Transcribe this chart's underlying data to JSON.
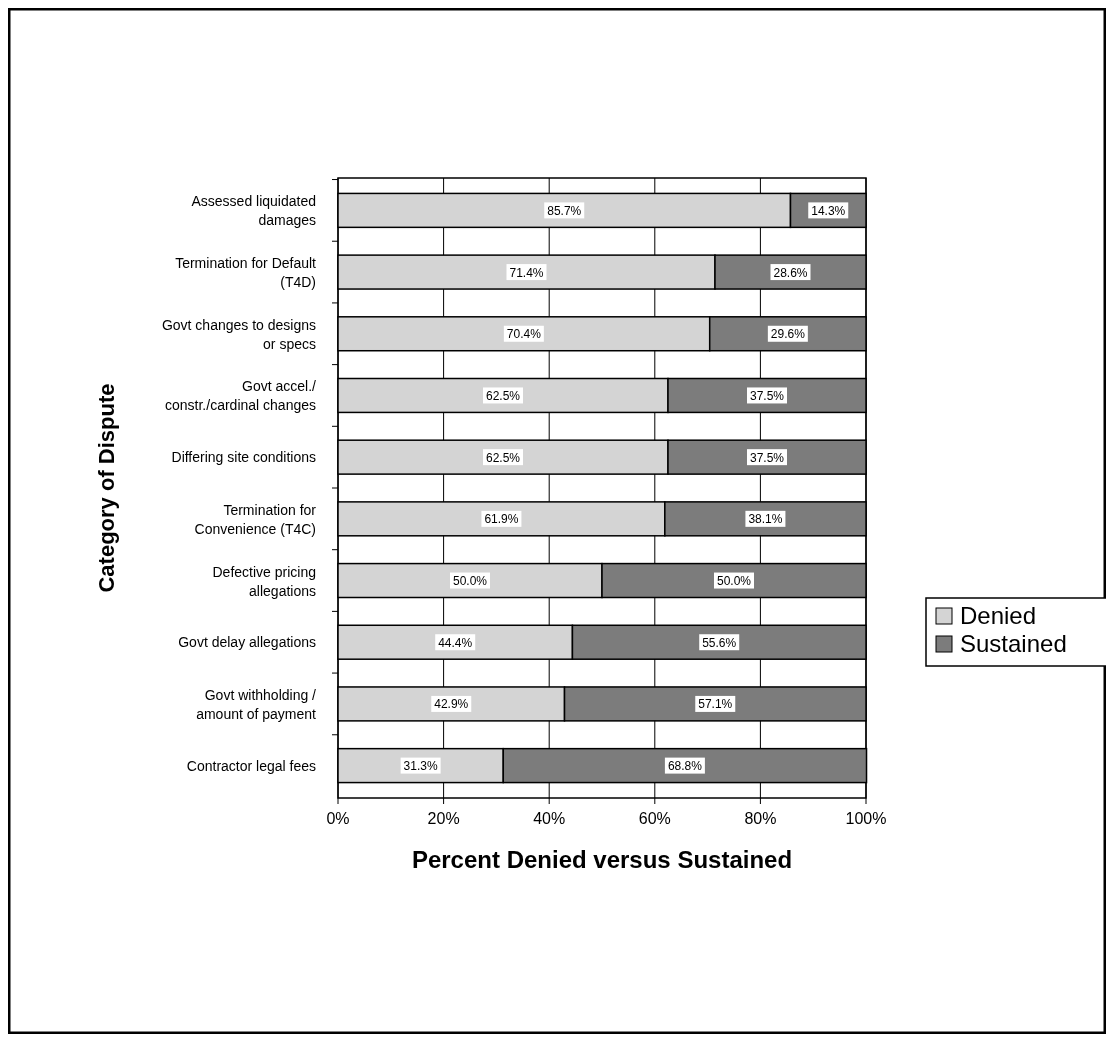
{
  "chart_data": {
    "type": "bar",
    "orientation": "horizontal",
    "stacked": true,
    "xlabel": "Percent Denied versus Sustained",
    "ylabel": "Category of Dispute",
    "categories": [
      "Assessed liquidated\ndamages",
      "Termination for Default\n(T4D)",
      "Govt changes to designs\nor specs",
      "Govt accel./\nconstr./cardinal changes",
      "Differing site conditions",
      "Termination for\nConvenience (T4C)",
      "Defective pricing\nallegations",
      "Govt delay allegations",
      "Govt withholding /\namount of payment",
      "Contractor legal fees"
    ],
    "series": [
      {
        "name": "Denied",
        "color": "#d4d4d4",
        "values": [
          85.7,
          71.4,
          70.4,
          62.5,
          62.5,
          61.9,
          50.0,
          44.4,
          42.9,
          31.3
        ],
        "value_labels": [
          "85.7%",
          "71.4%",
          "70.4%",
          "62.5%",
          "62.5%",
          "61.9%",
          "50.0%",
          "44.4%",
          "42.9%",
          "31.3%"
        ]
      },
      {
        "name": "Sustained",
        "color": "#7c7c7c",
        "values": [
          14.3,
          28.6,
          29.6,
          37.5,
          37.5,
          38.1,
          50.0,
          55.6,
          57.1,
          68.8
        ],
        "value_labels": [
          "14.3%",
          "28.6%",
          "29.6%",
          "37.5%",
          "37.5%",
          "38.1%",
          "50.0%",
          "55.6%",
          "57.1%",
          "68.8%"
        ]
      }
    ],
    "xlim": [
      0,
      100
    ],
    "xticks": [
      {
        "value": 0,
        "label": "0%"
      },
      {
        "value": 20,
        "label": "20%"
      },
      {
        "value": 40,
        "label": "40%"
      },
      {
        "value": 60,
        "label": "60%"
      },
      {
        "value": 80,
        "label": "80%"
      },
      {
        "value": 100,
        "label": "100%"
      }
    ],
    "grid": "x",
    "legend": "right"
  }
}
